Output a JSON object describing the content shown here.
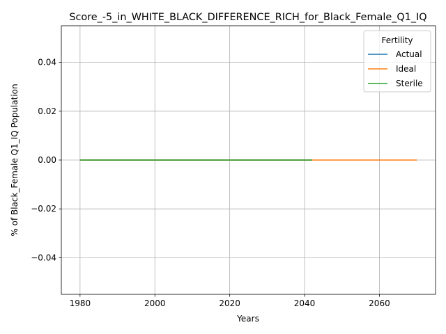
{
  "chart_data": {
    "type": "line",
    "title": "Score_-5_in_WHITE_BLACK_DIFFERENCE_RICH_for_Black_Female_Q1_IQ",
    "xlabel": "Years",
    "ylabel": "% of Black_Female Q1_IQ Population",
    "xlim": [
      1975,
      2075
    ],
    "ylim": [
      -0.055,
      0.055
    ],
    "x_ticks": [
      1980,
      2000,
      2020,
      2040,
      2060
    ],
    "y_ticks": [
      -0.04,
      -0.02,
      0.0,
      0.02,
      0.04
    ],
    "x_tick_labels": [
      "1980",
      "2000",
      "2020",
      "2040",
      "2060"
    ],
    "y_tick_labels": [
      "−0.04",
      "−0.02",
      "0.00",
      "0.02",
      "0.04"
    ],
    "grid": true,
    "legend": {
      "title": "Fertility",
      "placement": "top-right"
    },
    "series": [
      {
        "name": "Actual",
        "color": "#1f77b4",
        "x": [
          1980,
          2042
        ],
        "y": [
          0,
          0
        ]
      },
      {
        "name": "Ideal",
        "color": "#ff7f0e",
        "x": [
          1980,
          2070
        ],
        "y": [
          0,
          0
        ]
      },
      {
        "name": "Sterile",
        "color": "#2ca02c",
        "x": [
          1980,
          2042
        ],
        "y": [
          0,
          0
        ]
      }
    ]
  }
}
